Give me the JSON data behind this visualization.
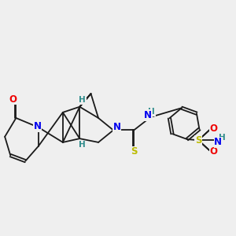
{
  "bg_color": "#efefef",
  "fig_size": [
    3.0,
    3.0
  ],
  "dpi": 100,
  "bond_color": "#1a1a1a",
  "bond_lw": 1.3,
  "atom_colors": {
    "N": "#0000ee",
    "O": "#ee0000",
    "S": "#bbbb00",
    "H": "#2e8b8b",
    "C": "#1a1a1a"
  },
  "font_size": 8.5
}
